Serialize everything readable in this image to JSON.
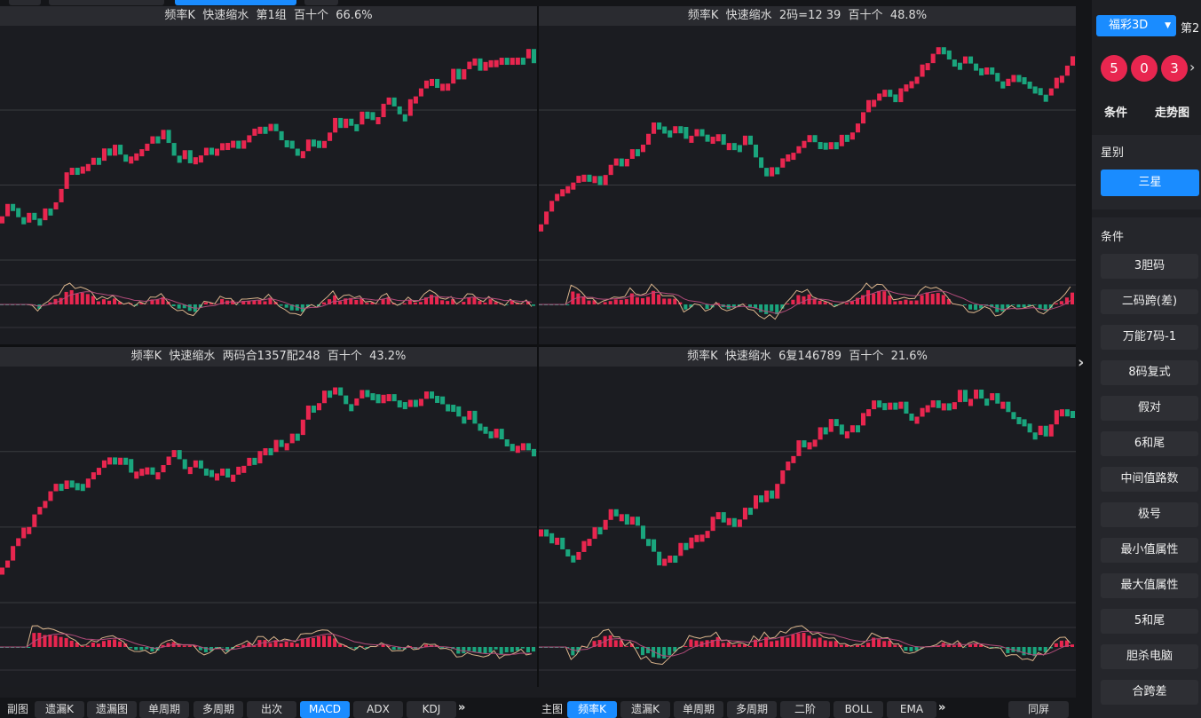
{
  "panels": [
    {
      "title": "频率K  快速缩水  第1组  百十个  66.6%"
    },
    {
      "title": "频率K  快速缩水  2码=12 39  百十个  48.8%"
    },
    {
      "title": "频率K  快速缩水  两码合1357配248  百十个  43.2%"
    },
    {
      "title": "频率K  快速缩水  6复146789  百十个  21.6%"
    }
  ],
  "bottom_left": {
    "label": "副图",
    "buttons": [
      "遗漏K",
      "遗漏图",
      "单周期",
      "多周期",
      "出次",
      "MACD",
      "ADX",
      "KDJ"
    ],
    "active": "MACD",
    "more": "»"
  },
  "bottom_right": {
    "label": "主图",
    "buttons": [
      "频率K",
      "遗漏K",
      "单周期",
      "多周期",
      "二阶",
      "BOLL",
      "EMA"
    ],
    "active": "频率K",
    "more": "»",
    "fullscreen": "同屏"
  },
  "sidebar": {
    "lottery": "福彩3D",
    "issue": "第2",
    "balls": [
      "5",
      "0",
      "3"
    ],
    "tabs": [
      "条件",
      "走势图"
    ],
    "star_title": "星别",
    "star_selected": "三星",
    "conditions_title": "条件",
    "conditions": [
      "3胆码",
      "二码跨(差)",
      "万能7码-1",
      "8码复式",
      "假对",
      "6和尾",
      "中间值路数",
      "极号",
      "最小值属性",
      "最大值属性",
      "5和尾",
      "胆杀电脑",
      "合跨差"
    ]
  },
  "colors": {
    "up": "#e8264f",
    "down": "#1aa57d",
    "accent": "#1a8cff",
    "dif": "#d9b48c",
    "dea": "#b24b7a"
  }
}
